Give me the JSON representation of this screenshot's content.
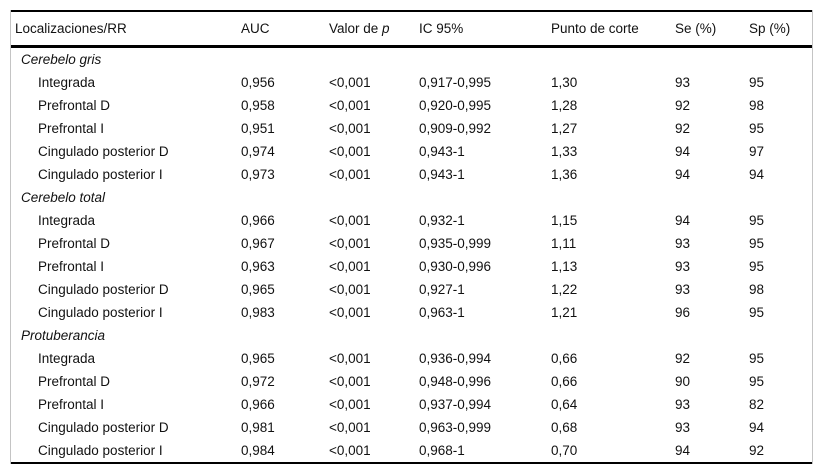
{
  "header": {
    "localizaciones": "Localizaciones/RR",
    "auc": "AUC",
    "valor_de": "Valor de ",
    "p_italic": "p",
    "ic95": "IC 95%",
    "punto_de_corte": "Punto de corte",
    "se": "Se (%)",
    "sp": "Sp (%)"
  },
  "table": {
    "sections": [
      {
        "name": "Cerebelo gris",
        "rows": [
          [
            "Integrada",
            "0,956",
            "<0,001",
            "0,917-0,995",
            "1,30",
            "93",
            "95"
          ],
          [
            "Prefrontal D",
            "0,958",
            "<0,001",
            "0,920-0,995",
            "1,28",
            "92",
            "98"
          ],
          [
            "Prefrontal I",
            "0,951",
            "<0,001",
            "0,909-0,992",
            "1,27",
            "92",
            "95"
          ],
          [
            "Cingulado posterior D",
            "0,974",
            "<0,001",
            "0,943-1",
            "1,33",
            "94",
            "97"
          ],
          [
            "Cingulado posterior I",
            "0,973",
            "<0,001",
            "0,943-1",
            "1,36",
            "94",
            "94"
          ]
        ]
      },
      {
        "name": "Cerebelo total",
        "rows": [
          [
            "Integrada",
            "0,966",
            "<0,001",
            "0,932-1",
            "1,15",
            "94",
            "95"
          ],
          [
            "Prefrontal D",
            "0,967",
            "<0,001",
            "0,935-0,999",
            "1,11",
            "93",
            "95"
          ],
          [
            "Prefrontal I",
            "0,963",
            "<0,001",
            "0,930-0,996",
            "1,13",
            "93",
            "95"
          ],
          [
            "Cingulado posterior D",
            "0,965",
            "<0,001",
            "0,927-1",
            "1,22",
            "93",
            "98"
          ],
          [
            "Cingulado posterior I",
            "0,983",
            "<0,001",
            "0,963-1",
            "1,21",
            "96",
            "95"
          ]
        ]
      },
      {
        "name": "Protuberancia",
        "rows": [
          [
            "Integrada",
            "0,965",
            "<0,001",
            "0,936-0,994",
            "0,66",
            "92",
            "95"
          ],
          [
            "Prefrontal D",
            "0,972",
            "<0,001",
            "0,948-0,996",
            "0,66",
            "90",
            "95"
          ],
          [
            "Prefrontal I",
            "0,966",
            "<0,001",
            "0,937-0,994",
            "0,64",
            "93",
            "82"
          ],
          [
            "Cingulado posterior D",
            "0,981",
            "<0,001",
            "0,963-0,999",
            "0,68",
            "93",
            "94"
          ],
          [
            "Cingulado posterior I",
            "0,984",
            "<0,001",
            "0,968-1",
            "0,70",
            "94",
            "92"
          ]
        ]
      }
    ]
  },
  "colors": {
    "background": "#ffffff",
    "text": "#111111",
    "border_dark": "#000000",
    "border_light": "#c4c4c4"
  }
}
